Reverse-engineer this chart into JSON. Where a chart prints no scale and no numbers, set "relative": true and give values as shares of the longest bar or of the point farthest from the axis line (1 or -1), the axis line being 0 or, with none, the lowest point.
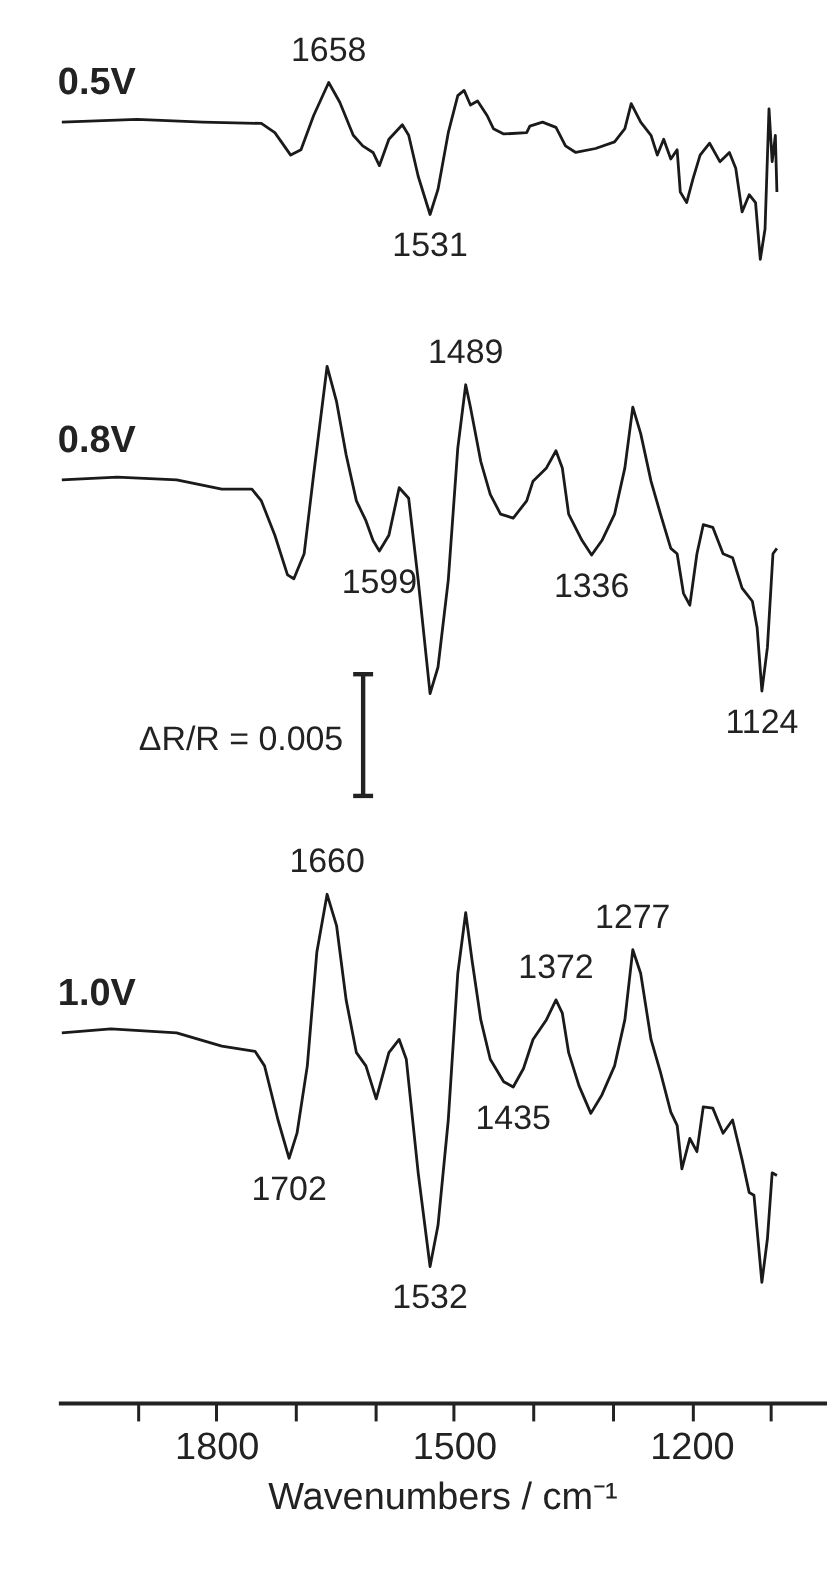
{
  "chart_data": {
    "type": "line",
    "relative": true,
    "xlabel": "Wavenumbers / cm⁻¹",
    "xlim": [
      2000,
      1030
    ],
    "xticks": [
      {
        "value": 1900,
        "label": null
      },
      1800,
      {
        "value": 1700,
        "label": null
      },
      {
        "value": 1600,
        "label": null
      },
      1500,
      {
        "value": 1400,
        "label": null
      },
      {
        "value": 1300,
        "label": null
      },
      1200,
      {
        "value": 1100,
        "label": null
      }
    ],
    "grid": false,
    "marker": "none",
    "line_style": "solid",
    "series": [
      {
        "name": "0.5V",
        "color": "#1a1a1a",
        "x": [
          1995,
          1900,
          1817,
          1743,
          1726,
          1706,
          1693,
          1677,
          1658,
          1644,
          1627,
          1615,
          1602,
          1594,
          1582,
          1565,
          1557,
          1545,
          1530,
          1520,
          1507,
          1495,
          1487,
          1479,
          1470,
          1458,
          1450,
          1437,
          1408,
          1404,
          1388,
          1371,
          1359,
          1346,
          1321,
          1297,
          1284,
          1276,
          1264,
          1251,
          1243,
          1235,
          1226,
          1218,
          1214,
          1206,
          1198,
          1189,
          1177,
          1164,
          1152,
          1144,
          1136,
          1127,
          1119,
          1113,
          1107,
          1102,
          1098,
          1094,
          1092
        ],
        "values": [
          0.97,
          0.972,
          0.97,
          0.969,
          0.962,
          0.945,
          0.949,
          0.975,
          1.0,
          0.985,
          0.96,
          0.952,
          0.947,
          0.937,
          0.957,
          0.968,
          0.96,
          0.929,
          0.9,
          0.919,
          0.962,
          0.99,
          0.994,
          0.983,
          0.986,
          0.975,
          0.965,
          0.961,
          0.962,
          0.967,
          0.97,
          0.966,
          0.952,
          0.947,
          0.95,
          0.955,
          0.965,
          0.984,
          0.97,
          0.96,
          0.945,
          0.957,
          0.942,
          0.949,
          0.917,
          0.909,
          0.927,
          0.945,
          0.954,
          0.94,
          0.947,
          0.935,
          0.902,
          0.915,
          0.909,
          0.866,
          0.889,
          0.98,
          0.94,
          0.96,
          0.917
        ]
      },
      {
        "name": "0.8V",
        "color": "#1a1a1a",
        "x": [
          1995,
          1925,
          1850,
          1793,
          1755,
          1743,
          1726,
          1710,
          1702,
          1689,
          1677,
          1660,
          1648,
          1636,
          1623,
          1611,
          1602,
          1594,
          1582,
          1569,
          1557,
          1545,
          1530,
          1520,
          1507,
          1495,
          1485,
          1479,
          1466,
          1454,
          1441,
          1425,
          1408,
          1400,
          1383,
          1371,
          1363,
          1355,
          1338,
          1326,
          1313,
          1297,
          1284,
          1274,
          1264,
          1251,
          1239,
          1226,
          1218,
          1210,
          1202,
          1193,
          1185,
          1173,
          1160,
          1148,
          1136,
          1123,
          1117,
          1111,
          1104,
          1097,
          1092
        ],
        "values": [
          0.699,
          0.701,
          0.699,
          0.692,
          0.692,
          0.683,
          0.657,
          0.627,
          0.624,
          0.643,
          0.703,
          0.785,
          0.758,
          0.718,
          0.683,
          0.668,
          0.653,
          0.645,
          0.657,
          0.693,
          0.685,
          0.623,
          0.537,
          0.557,
          0.623,
          0.723,
          0.771,
          0.754,
          0.713,
          0.688,
          0.673,
          0.67,
          0.683,
          0.698,
          0.708,
          0.721,
          0.708,
          0.673,
          0.653,
          0.642,
          0.653,
          0.673,
          0.708,
          0.754,
          0.734,
          0.698,
          0.673,
          0.647,
          0.643,
          0.613,
          0.604,
          0.643,
          0.665,
          0.663,
          0.643,
          0.64,
          0.617,
          0.607,
          0.587,
          0.539,
          0.572,
          0.643,
          0.647
        ]
      },
      {
        "name": "1.0V",
        "color": "#1a1a1a",
        "x": [
          1995,
          1933,
          1850,
          1793,
          1751,
          1739,
          1722,
          1708,
          1698,
          1685,
          1673,
          1660,
          1648,
          1636,
          1623,
          1611,
          1598,
          1582,
          1569,
          1560,
          1545,
          1530,
          1520,
          1507,
          1495,
          1485,
          1477,
          1466,
          1454,
          1437,
          1425,
          1412,
          1400,
          1383,
          1371,
          1363,
          1355,
          1342,
          1327,
          1313,
          1297,
          1284,
          1274,
          1264,
          1251,
          1239,
          1226,
          1218,
          1212,
          1202,
          1193,
          1185,
          1173,
          1160,
          1148,
          1136,
          1127,
          1121,
          1111,
          1104,
          1098,
          1092
        ],
        "values": [
          0.28,
          0.283,
          0.28,
          0.27,
          0.266,
          0.255,
          0.214,
          0.185,
          0.204,
          0.255,
          0.341,
          0.385,
          0.361,
          0.305,
          0.265,
          0.255,
          0.23,
          0.265,
          0.275,
          0.26,
          0.174,
          0.103,
          0.134,
          0.214,
          0.325,
          0.371,
          0.335,
          0.29,
          0.26,
          0.243,
          0.239,
          0.253,
          0.275,
          0.29,
          0.305,
          0.295,
          0.265,
          0.24,
          0.219,
          0.233,
          0.255,
          0.29,
          0.343,
          0.325,
          0.275,
          0.25,
          0.22,
          0.21,
          0.177,
          0.2,
          0.19,
          0.224,
          0.223,
          0.204,
          0.214,
          0.184,
          0.159,
          0.157,
          0.091,
          0.124,
          0.174,
          0.172
        ]
      }
    ],
    "annotations": [
      {
        "text": "1658",
        "x": 1658,
        "y": 1.0
      },
      {
        "text": "1531",
        "x": 1530,
        "y": 0.9
      },
      {
        "text": "1489",
        "x": 1485,
        "y": 0.771
      },
      {
        "text": "1599",
        "x": 1594,
        "y": 0.645
      },
      {
        "text": "1336",
        "x": 1326,
        "y": 0.642
      },
      {
        "text": "1124",
        "x": 1111,
        "y": 0.539
      },
      {
        "text": "1660",
        "x": 1660,
        "y": 0.385
      },
      {
        "text": "1372",
        "x": 1371,
        "y": 0.305
      },
      {
        "text": "1277",
        "x": 1274,
        "y": 0.343
      },
      {
        "text": "1435",
        "x": 1425,
        "y": 0.239
      },
      {
        "text": "1702",
        "x": 1708,
        "y": 0.185
      },
      {
        "text": "1532",
        "x": 1530,
        "y": 0.103
      },
      "ΔR/R = 0.005"
    ]
  }
}
